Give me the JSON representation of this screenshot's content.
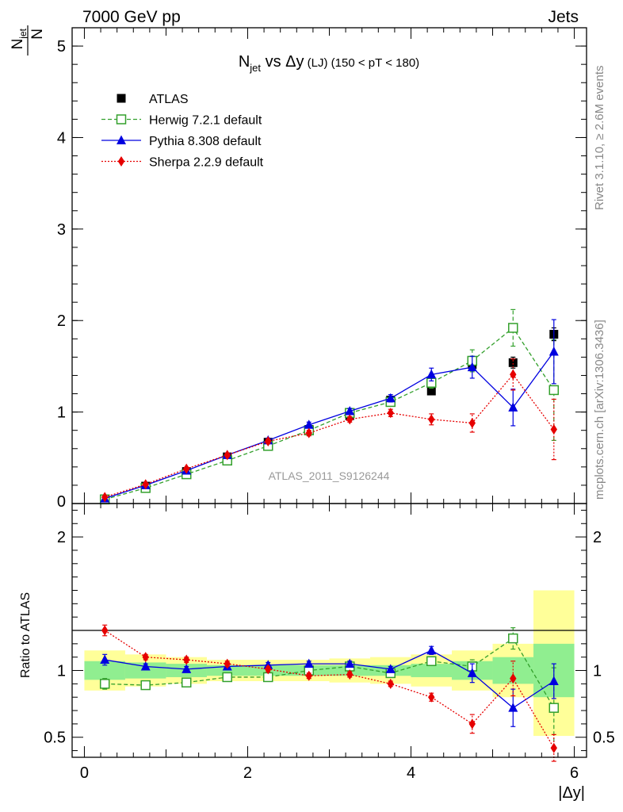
{
  "header": {
    "left_label": "7000 GeV pp",
    "right_label": "Jets"
  },
  "side_labels": {
    "rivet": "Rivet 3.1.10, ≥ 2.6M events",
    "mcplots": "mcplots.cern.ch [arXiv:1306.3436]"
  },
  "watermark": "ATLAS_2011_S9126244",
  "chart_data": [
    {
      "type": "line",
      "panel": "main",
      "title_parts": {
        "n": "N",
        "n_sub": "jet",
        "vs": " vs ",
        "delta_y": "Δy",
        "lj": " (LJ)",
        "range": " (150 < pT < 180)"
      },
      "ylabel_parts": {
        "numerator": "N",
        "numerator_sub": "jet",
        "denominator": "N"
      },
      "xlabel": "|Δy|",
      "xlim": [
        -0.15,
        6.15
      ],
      "ylim": [
        0,
        5.2
      ],
      "xticks": [
        0,
        2,
        4,
        6
      ],
      "yticks": [
        1,
        2,
        3,
        4,
        5
      ],
      "ytick_zero_label": "0",
      "x": [
        0.25,
        0.75,
        1.25,
        1.75,
        2.25,
        2.75,
        3.25,
        3.75,
        4.25,
        4.75,
        5.25,
        5.75
      ],
      "x_bins": [
        0,
        0.5,
        1,
        1.5,
        2,
        2.5,
        3,
        3.5,
        4,
        4.5,
        5,
        5.5,
        6
      ],
      "legend_position": "top-left",
      "series": [
        {
          "name": "ATLAS",
          "color": "#000000",
          "marker": "filled-square",
          "values": [
            0.05,
            0.19,
            0.35,
            0.51,
            0.67,
            0.81,
            0.96,
            1.13,
            1.23,
            1.52,
            1.54,
            1.85
          ],
          "errors": [
            0.005,
            0.01,
            0.015,
            0.02,
            0.02,
            0.025,
            0.03,
            0.035,
            0.04,
            0.05,
            0.06,
            0.07
          ]
        },
        {
          "name": "Herwig 7.2.1 default",
          "color": "#33a02c",
          "marker": "open-square",
          "line": "dashed",
          "values": [
            0.045,
            0.17,
            0.32,
            0.47,
            0.63,
            0.8,
            0.99,
            1.11,
            1.32,
            1.56,
            1.92,
            1.24
          ],
          "errors": [
            0.005,
            0.01,
            0.015,
            0.02,
            0.025,
            0.03,
            0.03,
            0.04,
            0.06,
            0.12,
            0.2,
            0.55
          ]
        },
        {
          "name": "Pythia 8.308 default",
          "color": "#0000e0",
          "marker": "triangle",
          "line": "solid",
          "values": [
            0.055,
            0.2,
            0.36,
            0.53,
            0.69,
            0.86,
            1.01,
            1.15,
            1.41,
            1.49,
            1.05,
            1.66
          ],
          "errors": [
            0.005,
            0.01,
            0.015,
            0.02,
            0.025,
            0.03,
            0.03,
            0.04,
            0.07,
            0.12,
            0.2,
            0.35
          ]
        },
        {
          "name": "Sherpa 2.2.9 default",
          "color": "#e60000",
          "marker": "diamond",
          "line": "dotted",
          "values": [
            0.07,
            0.21,
            0.38,
            0.53,
            0.68,
            0.77,
            0.92,
            0.99,
            0.92,
            0.88,
            1.41,
            0.81
          ],
          "errors": [
            0.005,
            0.01,
            0.015,
            0.02,
            0.025,
            0.03,
            0.03,
            0.04,
            0.06,
            0.1,
            0.17,
            0.33
          ]
        }
      ]
    },
    {
      "type": "line",
      "panel": "ratio",
      "ylabel": "Ratio to ATLAS",
      "xlabel": "|Δy|",
      "xlim": [
        -0.15,
        6.15
      ],
      "ylim": [
        0.35,
        2.25
      ],
      "xticks": [
        0,
        2,
        4,
        6
      ],
      "yticks": [
        0.5,
        1,
        2
      ],
      "ytick_labels": [
        "0.5",
        "1",
        "2"
      ],
      "x": [
        0.25,
        0.75,
        1.25,
        1.75,
        2.25,
        2.75,
        3.25,
        3.75,
        4.25,
        4.75,
        5.25,
        5.75
      ],
      "x_bins": [
        0,
        0.5,
        1,
        1.5,
        2,
        2.5,
        3,
        3.5,
        4,
        4.5,
        5,
        5.5,
        6
      ],
      "bands": {
        "inner_color": "#90ee90",
        "outer_color": "#ffff99",
        "inner_lo": [
          0.93,
          0.94,
          0.95,
          0.96,
          0.96,
          0.96,
          0.96,
          0.96,
          0.95,
          0.93,
          0.9,
          0.8
        ],
        "inner_hi": [
          1.07,
          1.06,
          1.05,
          1.04,
          1.04,
          1.04,
          1.04,
          1.04,
          1.05,
          1.07,
          1.1,
          1.2
        ],
        "outer_lo": [
          0.85,
          0.88,
          0.9,
          0.92,
          0.92,
          0.92,
          0.91,
          0.9,
          0.88,
          0.85,
          0.8,
          0.51
        ],
        "outer_hi": [
          1.15,
          1.12,
          1.1,
          1.08,
          1.08,
          1.08,
          1.09,
          1.1,
          1.12,
          1.15,
          1.2,
          1.6
        ]
      },
      "series": [
        {
          "name": "Herwig 7.2.1 default",
          "color": "#33a02c",
          "marker": "open-square",
          "line": "dashed",
          "values": [
            0.9,
            0.89,
            0.91,
            0.95,
            0.95,
            1.0,
            1.03,
            0.98,
            1.07,
            1.03,
            1.24,
            0.72
          ],
          "errors": [
            0.04,
            0.02,
            0.02,
            0.02,
            0.02,
            0.02,
            0.02,
            0.02,
            0.03,
            0.05,
            0.08,
            0.3
          ]
        },
        {
          "name": "Pythia 8.308 default",
          "color": "#0000e0",
          "marker": "triangle",
          "line": "solid",
          "values": [
            1.08,
            1.03,
            1.01,
            1.03,
            1.04,
            1.05,
            1.05,
            1.01,
            1.15,
            0.98,
            0.72,
            0.92
          ],
          "errors": [
            0.04,
            0.02,
            0.02,
            0.02,
            0.02,
            0.02,
            0.02,
            0.02,
            0.03,
            0.07,
            0.14,
            0.13
          ]
        },
        {
          "name": "Sherpa 2.2.9 default",
          "color": "#e60000",
          "marker": "diamond",
          "line": "dotted",
          "values": [
            1.3,
            1.1,
            1.08,
            1.05,
            1.01,
            0.96,
            0.97,
            0.9,
            0.8,
            0.6,
            0.94,
            0.42
          ],
          "errors": [
            0.04,
            0.02,
            0.02,
            0.02,
            0.02,
            0.02,
            0.02,
            0.02,
            0.03,
            0.07,
            0.13,
            0.1
          ]
        }
      ]
    }
  ]
}
